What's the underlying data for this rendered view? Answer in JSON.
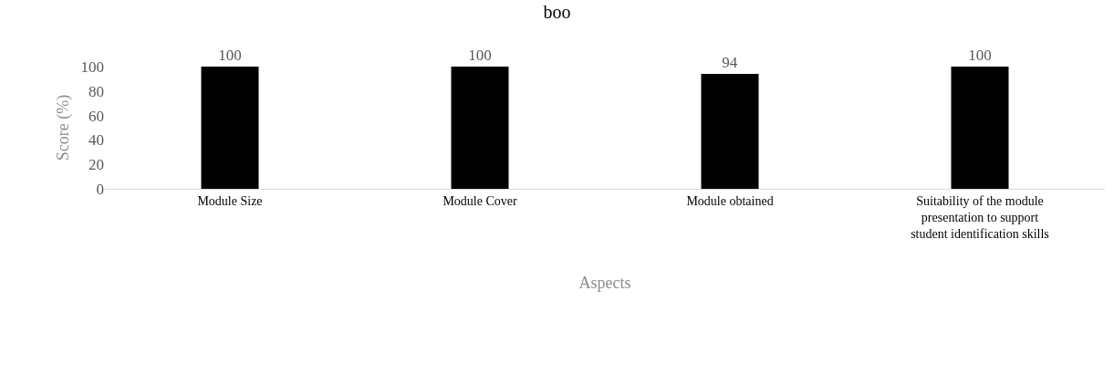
{
  "chart_data": {
    "type": "bar",
    "title": "boo",
    "xlabel": "Aspects",
    "ylabel": "Score (%)",
    "categories": [
      "Module Size",
      "Module Cover",
      "Module obtained",
      "Suitability of the module presentation to support student identification skills"
    ],
    "values": [
      100,
      100,
      94,
      100
    ],
    "color": "#000000",
    "ylim": [
      0,
      100
    ],
    "yticks": [
      0,
      20,
      40,
      60,
      80,
      100
    ],
    "legend": false,
    "data_labels": true
  }
}
